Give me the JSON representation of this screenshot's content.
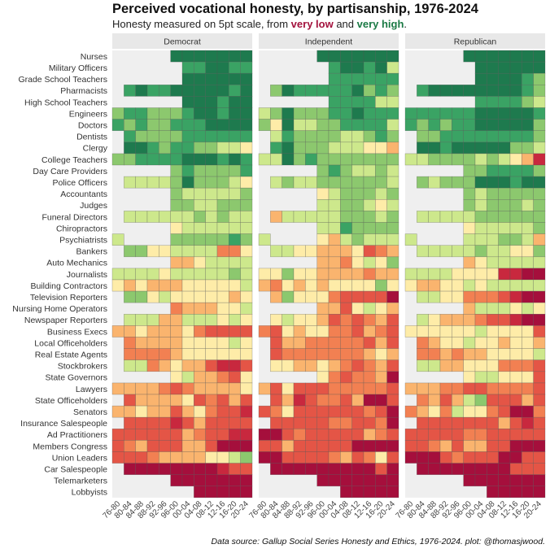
{
  "header": {
    "title": "Perceived vocational honesty, by partisanship, 1976-2024",
    "subtitle_pre": "Honesty measured on 5pt scale, from ",
    "subtitle_low": "very low",
    "subtitle_mid": " and ",
    "subtitle_high": "very high",
    "subtitle_post": "."
  },
  "caption": "Data source: Gallup Social Series Honesty and Ethics, 1976-2024. plot: @thomasjwood.",
  "chart_data": {
    "type": "heatmap",
    "title": "Perceived vocational honesty, by partisanship, 1976-2024",
    "subtitle": "Honesty measured on 5pt scale, from very low and very high.",
    "xlabel": "",
    "ylabel": "",
    "scale": {
      "min": 1,
      "max": 5,
      "low_label": "very low",
      "high_label": "very high",
      "low_color": "#a3123d",
      "high_color": "#1b7a45"
    },
    "facets": [
      "Democrat",
      "Independent",
      "Republican"
    ],
    "x": [
      "76-80",
      "80-84",
      "84-88",
      "88-92",
      "92-96",
      "96-00",
      "00-04",
      "04-08",
      "08-12",
      "12-16",
      "16-20",
      "20-24"
    ],
    "y": [
      "Nurses",
      "Military Officers",
      "Grade School Teachers",
      "Pharmacists",
      "High School Teachers",
      "Engineers",
      "Doctors",
      "Dentists",
      "Clergy",
      "College Teachers",
      "Day Care Providers",
      "Police Officers",
      "Accountants",
      "Judges",
      "Funeral Directors",
      "Chiropractors",
      "Psychiatrists",
      "Bankers",
      "Auto Mechanics",
      "Journalists",
      "Building Contractors",
      "Television Reporters",
      "Nursing Home Operators",
      "Newspaper Reporters",
      "Business Execs",
      "Local Officeholders",
      "Real Estate Agents",
      "Stockbrokers",
      "State Governors",
      "Lawyers",
      "State Officeholders",
      "Senators",
      "Insurance Salespeople",
      "Ad Practitioners",
      "Members Congress",
      "Union Leaders",
      "Car Salespeople",
      "Telemarketers",
      "Lobbyists"
    ],
    "level_scores": {
      "1": 1.6,
      "2": 1.9,
      "3": 2.15,
      "4": 2.4,
      "5": 2.65,
      "6": 2.95,
      "7": 3.25,
      "8": 3.55,
      "9": 3.85,
      "0": 4.2
    },
    "encoding_note": "each row string has 12 chars (one per period); digit = score level key in level_scores, '.' = no data",
    "values": {
      "Democrat": [
        ".....0000000",
        "......990099",
        "......000000",
        ".90990000090",
        "......000900",
        "899888900900",
        "989889990000",
        ".98888999999",
        ".00989988776",
        "889999000909",
        ".....8988889",
        ".77778088876",
        ".....8777778",
        ".....8877888",
        ".77777787877",
        ".....6777777",
        "7....8888898",
        ".88667777446",
        ".....5567777",
        "777767777787",
        "656555666667",
        ".88676666656",
        ".....4555667",
        ".77755777676",
        "556555643333",
        ".45555666676",
        ".44445666666",
        ".77456553223",
        ".....6755436",
        "555543455556",
        ".35555634353",
        "556553564332",
        ".33332353333",
        "333333543322",
        "345333553111",
        "333455556678",
        ".11111111233",
        ".....1111111",
        ".......11111"
      ],
      "Independent": [
        ".....0000000",
        "......900907",
        "......999999",
        ".80999990898",
        "......999977",
        "780888990999",
        "860778899997",
        ".79888877898",
        ".90888777665",
        "770898888888",
        ".....8987787",
        ".78778888887",
        ".....6788878",
        ".....7788767",
        ".57777788878",
        ".....7798888",
        "7....6578777",
        ".77665556345",
        ".....5546768",
        "668665555455",
        "546565666686",
        ".58666433331",
        ".....5536765",
        ".67665343453",
        "436566443543",
        ".35544444353",
        ".34444444565",
        ".66556543453",
        ".....6434451",
        "536333444443",
        ".35234435113",
        "346333333431",
        ".33333443341",
        "113433333543",
        "335333331111",
        "113333453463",
        ".11111111131",
        ".....1111111",
        ".......11111"
      ],
      "Republican": [
        ".....0000000",
        "......000000",
        "......000098",
        ".90000000098",
        "......999987",
        "999999000009",
        "989899000008",
        ".88999999998",
        ".00900000887",
        "778888787652",
        ".....8899998",
        ".87888000900",
        ".....8788888",
        ".....8788878",
        ".77777888888",
        ".....6777778",
        "7....7778875",
        ".77777877668",
        ".....5677777",
        "777766662211",
        "655667677777",
        ".77664443211",
        ".....5777676",
        ".76555433211",
        "666666766663",
        ".45667665665",
        ".44545566667",
        ".77556664443",
        ".....6776663",
        "555443344443",
        ".45357833353",
        "456476643114",
        ".33333335323",
        "333334433333",
        "334535533111",
        "111343331133",
        ".11111111333",
        ".....1111111",
        ".......11111"
      ]
    },
    "grid": false,
    "legend": "none"
  }
}
